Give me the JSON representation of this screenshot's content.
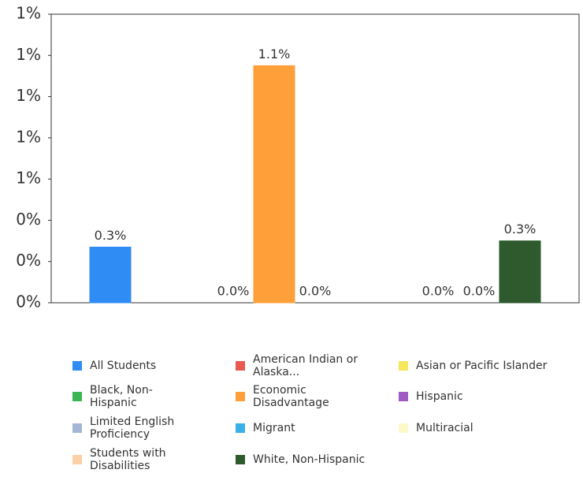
{
  "chart_data": {
    "type": "bar",
    "categories": [
      "All Students",
      "American Indian or Alaska...",
      "Asian or Pacific Islander",
      "Black, Non-Hispanic",
      "Economic Disadvantage",
      "Hispanic",
      "Limited English Proficiency",
      "Migrant",
      "Multiracial",
      "Students with Disabilities",
      "White, Non-Hispanic"
    ],
    "values": [
      0.27,
      0,
      0,
      0,
      1.15,
      0,
      0,
      0,
      0,
      0,
      0.3
    ],
    "value_labels": [
      "0.3%",
      null,
      null,
      "0.0%",
      "1.1%",
      "0.0%",
      null,
      null,
      "0.0%",
      "0.0%",
      "0.3%"
    ],
    "colors": [
      "#2f8cf5",
      "#e85a4f",
      "#f5e65a",
      "#3cb554",
      "#ff9f3a",
      "#a05cc0",
      "#a3b6d3",
      "#3ab0e8",
      "#fdf8c8",
      "#fcd0a8",
      "#2e5a2e"
    ],
    "ylim": [
      0,
      1.4
    ],
    "yticks": [
      {
        "value": 0,
        "label": "0%"
      },
      {
        "value": 0.2,
        "label": "0%"
      },
      {
        "value": 0.4,
        "label": "0%"
      },
      {
        "value": 0.6,
        "label": "1%"
      },
      {
        "value": 0.8,
        "label": "1%"
      },
      {
        "value": 1.0,
        "label": "1%"
      },
      {
        "value": 1.2,
        "label": "1%"
      },
      {
        "value": 1.4,
        "label": "1%"
      }
    ],
    "legend": "bottom"
  }
}
